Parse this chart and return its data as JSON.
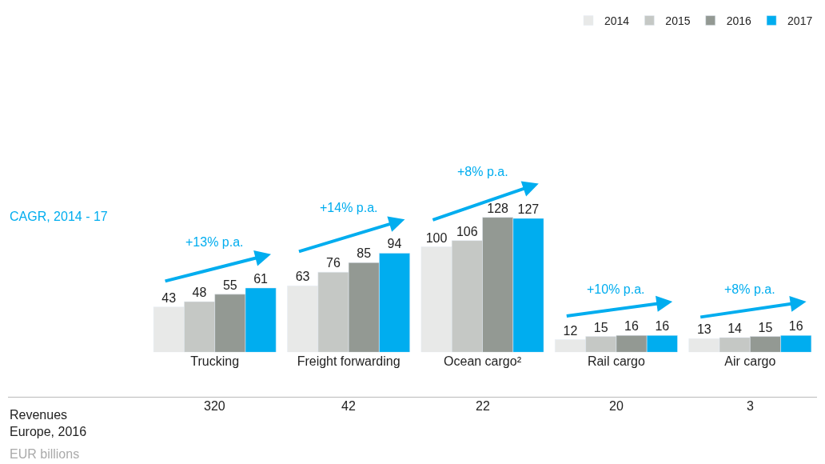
{
  "chart_data": {
    "type": "bar",
    "categories": [
      "Trucking",
      "Freight forwarding",
      "Ocean cargo²",
      "Rail cargo",
      "Air cargo"
    ],
    "series": [
      {
        "name": "2014",
        "color": "#e8e9e8",
        "values": [
          43,
          63,
          100,
          12,
          13
        ]
      },
      {
        "name": "2015",
        "color": "#c5c8c5",
        "values": [
          48,
          76,
          106,
          15,
          14
        ]
      },
      {
        "name": "2016",
        "color": "#939993",
        "values": [
          55,
          85,
          128,
          16,
          15
        ]
      },
      {
        "name": "2017",
        "color": "#00adef",
        "values": [
          61,
          94,
          127,
          16,
          16
        ]
      }
    ],
    "data_labels": true,
    "legend": "top right",
    "annotations": [
      "CAGR, 2014 - 17",
      "Revenues\nEurope, 2016",
      "EUR billions",
      "+13% p.a.",
      "+14% p.a.",
      "+8% p.a.",
      "+10% p.a.",
      "+8% p.a.",
      "320",
      "42",
      "22",
      "20",
      "3"
    ]
  }
}
